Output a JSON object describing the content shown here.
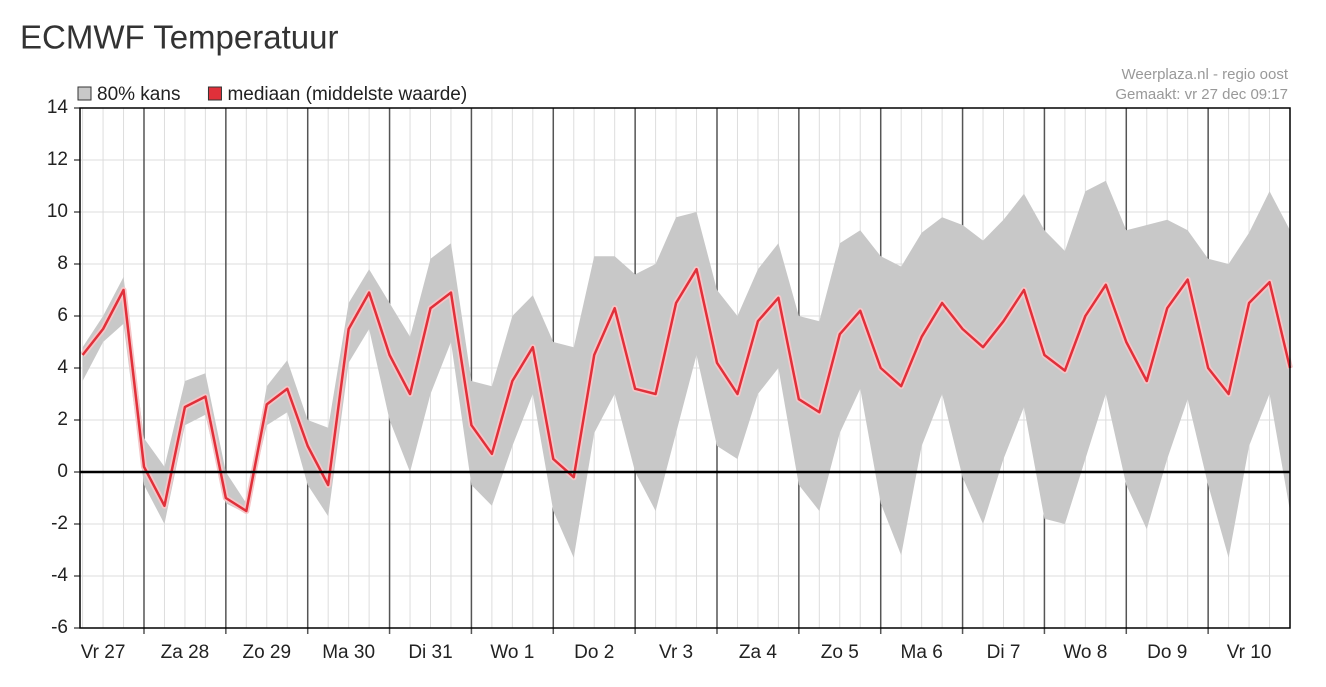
{
  "chart_data": {
    "type": "line",
    "title": "ECMWF Temperatuur",
    "annotations": [
      "Weerplaza.nl - regio oost",
      "Gemaakt: vr 27 dec 09:17"
    ],
    "categories": [
      null,
      "Vr 27",
      null,
      null,
      null,
      "Za 28",
      null,
      null,
      null,
      "Zo 29",
      null,
      null,
      null,
      "Ma 30",
      null,
      null,
      null,
      "Di 31",
      null,
      null,
      null,
      "Wo 1",
      null,
      null,
      null,
      "Do 2",
      null,
      null,
      null,
      "Vr 3",
      null,
      null,
      null,
      "Za 4",
      null,
      null,
      null,
      "Zo 5",
      null,
      null,
      null,
      "Ma 6",
      null,
      null,
      null,
      "Di 7",
      null,
      null,
      null,
      "Wo 8",
      null,
      null,
      null,
      "Do 9",
      null,
      null,
      null,
      "Vr 10",
      null,
      null
    ],
    "series": [
      {
        "name": "80% kans",
        "color": "#c8c8c8",
        "kind": "band",
        "low": [
          3.5,
          5.0,
          5.7,
          -0.5,
          -2.0,
          1.8,
          2.2,
          -1.2,
          -1.6,
          1.8,
          2.3,
          -0.5,
          -1.7,
          4.2,
          5.5,
          2.0,
          0.0,
          3.0,
          5.0,
          -0.5,
          -1.3,
          1.0,
          3.0,
          -1.5,
          -3.3,
          1.5,
          3.0,
          0.0,
          -1.5,
          1.5,
          4.5,
          1.0,
          0.5,
          3.0,
          4.0,
          -0.5,
          -1.5,
          1.5,
          3.2,
          -1.2,
          -3.2,
          1.0,
          3.0,
          -0.2,
          -2.0,
          0.5,
          2.5,
          -1.8,
          -2.0,
          0.5,
          3.0,
          -0.5,
          -2.2,
          0.5,
          2.8,
          -0.5,
          -3.3,
          1.0,
          3.0,
          -1.5
        ],
        "high": [
          4.8,
          6.0,
          7.5,
          1.3,
          0.2,
          3.5,
          3.8,
          0.0,
          -1.2,
          3.3,
          4.3,
          2.0,
          1.7,
          6.5,
          7.8,
          6.5,
          5.2,
          8.2,
          8.8,
          3.5,
          3.3,
          6.0,
          6.8,
          5.0,
          4.8,
          8.3,
          8.3,
          7.6,
          8.0,
          9.8,
          10.0,
          7.0,
          6.0,
          7.8,
          8.8,
          6.0,
          5.8,
          8.8,
          9.3,
          8.3,
          7.9,
          9.2,
          9.8,
          9.5,
          8.9,
          9.7,
          10.7,
          9.3,
          8.5,
          10.8,
          11.2,
          9.3,
          9.5,
          9.7,
          9.3,
          8.2,
          8.0,
          9.2,
          10.8,
          9.3
        ]
      },
      {
        "name": "mediaan (middelste waarde)",
        "color": "#e0303a",
        "kind": "line",
        "values": [
          4.5,
          5.5,
          7.0,
          0.2,
          -1.3,
          2.5,
          2.9,
          -1.0,
          -1.5,
          2.6,
          3.2,
          1.0,
          -0.5,
          5.5,
          6.9,
          4.5,
          3.0,
          6.3,
          6.9,
          1.8,
          0.7,
          3.5,
          4.8,
          0.5,
          -0.2,
          4.5,
          6.3,
          3.2,
          3.0,
          6.5,
          7.8,
          4.2,
          3.0,
          5.8,
          6.7,
          2.8,
          2.3,
          5.3,
          6.2,
          4.0,
          3.3,
          5.2,
          6.5,
          5.5,
          4.8,
          5.8,
          7.0,
          4.5,
          3.9,
          6.0,
          7.2,
          5.0,
          3.5,
          6.3,
          7.4,
          4.0,
          3.0,
          6.5,
          7.3,
          4.0
        ]
      }
    ],
    "ylim": [
      -6,
      14
    ],
    "yticks": [
      -6,
      -4,
      -2,
      0,
      2,
      4,
      6,
      8,
      10,
      12,
      14
    ],
    "grid": true,
    "zero_line": true
  }
}
